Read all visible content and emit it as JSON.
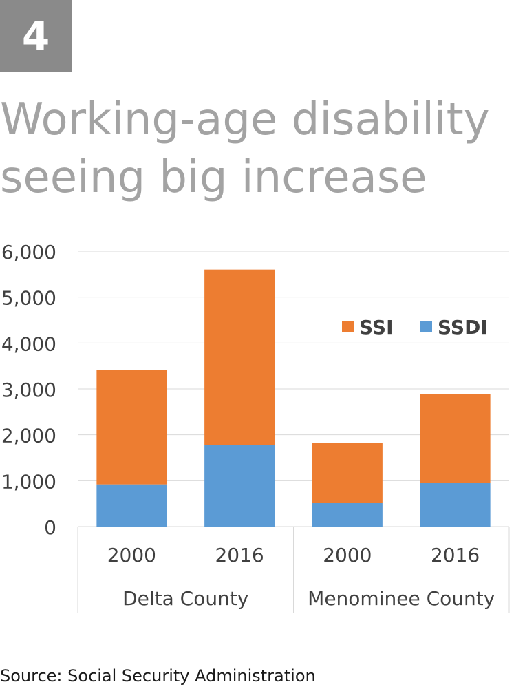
{
  "badge": "4",
  "title": {
    "line1": "Working-age disability",
    "line2": "seeing big increase"
  },
  "source": "Source: Social Security Administration",
  "colors": {
    "ssi": "#ED7D31",
    "ssdi": "#5B9BD5",
    "grid": "#d9d9d9",
    "text": "#404040"
  },
  "chart_data": {
    "type": "bar",
    "stacked": true,
    "groups": [
      {
        "label": "Delta County",
        "categories": [
          "2000",
          "2016"
        ]
      },
      {
        "label": "Menominee County",
        "categories": [
          "2000",
          "2016"
        ]
      }
    ],
    "categories": [
      "2000",
      "2016",
      "2000",
      "2016"
    ],
    "series": [
      {
        "name": "SSDI",
        "values": [
          920,
          1780,
          510,
          950
        ]
      },
      {
        "name": "SSI",
        "values": [
          2490,
          3820,
          1310,
          1930
        ]
      }
    ],
    "ylim": [
      0,
      6000
    ],
    "yticks": [
      "0",
      "1,000",
      "2,000",
      "3,000",
      "4,000",
      "5,000",
      "6,000"
    ],
    "legend": "top-right",
    "grid": true
  }
}
